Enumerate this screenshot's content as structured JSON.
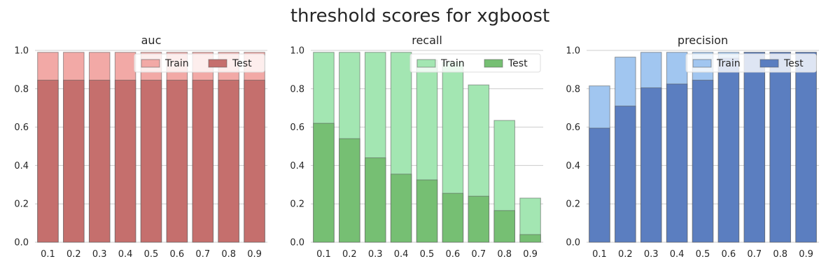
{
  "title": "threshold scores for xgboost",
  "chart_data": [
    {
      "type": "bar",
      "title": "auc",
      "categories": [
        "0.1",
        "0.2",
        "0.3",
        "0.4",
        "0.5",
        "0.6",
        "0.7",
        "0.8",
        "0.9"
      ],
      "yticks": [
        "0.0",
        "0.2",
        "0.4",
        "0.6",
        "0.8",
        "1.0"
      ],
      "ylim": [
        0,
        1.0
      ],
      "grid": "y",
      "legend": "top-right",
      "series": [
        {
          "name": "Train",
          "values": [
            0.99,
            0.99,
            0.99,
            0.99,
            0.99,
            0.99,
            0.99,
            0.99,
            0.99
          ],
          "color": "#f2a9a6"
        },
        {
          "name": "Test",
          "values": [
            0.845,
            0.845,
            0.845,
            0.845,
            0.845,
            0.845,
            0.845,
            0.845,
            0.845
          ],
          "color": "#c56f6d"
        }
      ]
    },
    {
      "type": "bar",
      "title": "recall",
      "categories": [
        "0.1",
        "0.2",
        "0.3",
        "0.4",
        "0.5",
        "0.6",
        "0.7",
        "0.8",
        "0.9"
      ],
      "yticks": [
        "0.0",
        "0.2",
        "0.4",
        "0.6",
        "0.8",
        "1.0"
      ],
      "ylim": [
        0,
        1.0
      ],
      "grid": "y",
      "legend": "top-right",
      "series": [
        {
          "name": "Train",
          "values": [
            0.99,
            0.99,
            0.99,
            0.99,
            0.95,
            0.94,
            0.82,
            0.635,
            0.23
          ],
          "color": "#a3e6b2"
        },
        {
          "name": "Test",
          "values": [
            0.62,
            0.54,
            0.44,
            0.355,
            0.325,
            0.255,
            0.24,
            0.165,
            0.04
          ],
          "color": "#76bf73"
        }
      ]
    },
    {
      "type": "bar",
      "title": "precision",
      "categories": [
        "0.1",
        "0.2",
        "0.3",
        "0.4",
        "0.5",
        "0.6",
        "0.7",
        "0.8",
        "0.9"
      ],
      "yticks": [
        "0.0",
        "0.2",
        "0.4",
        "0.6",
        "0.8",
        "1.0"
      ],
      "ylim": [
        0,
        1.0
      ],
      "grid": "y",
      "legend": "top-right",
      "series": [
        {
          "name": "Train",
          "values": [
            0.815,
            0.965,
            0.99,
            0.99,
            0.99,
            0.99,
            0.99,
            0.99,
            0.99
          ],
          "color": "#a1c6f0"
        },
        {
          "name": "Test",
          "values": [
            0.595,
            0.71,
            0.805,
            0.825,
            0.845,
            0.96,
            0.99,
            0.99,
            0.99
          ],
          "color": "#5b7ec0"
        }
      ]
    }
  ]
}
